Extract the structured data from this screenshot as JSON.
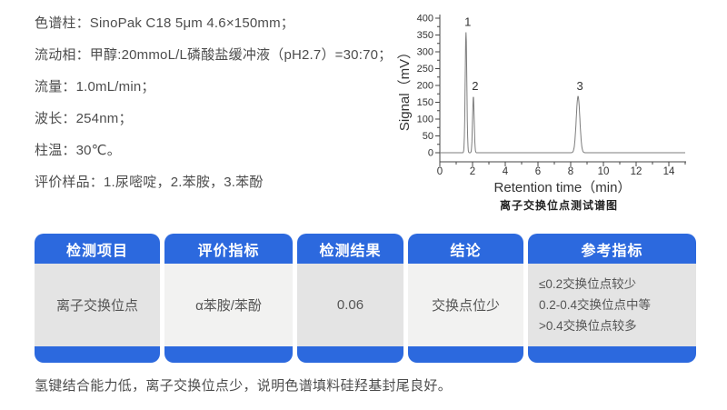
{
  "conditions": {
    "lines": [
      "色谱柱：SinoPak C18 5μm 4.6×150mm；",
      "流动相：甲醇:20mmoL/L磷酸盐缓冲液（pH2.7）=30:70；",
      "流量：1.0mL/min；",
      "波长：254nm；",
      "柱温：30℃。",
      "评价样品：1.尿嘧啶，2.苯胺，3.苯酚"
    ]
  },
  "chart_data": {
    "type": "line",
    "title": "离子交换位点测试谱图",
    "xlabel": "Retention time（min）",
    "ylabel": "Signal（mV）",
    "xlim": [
      0,
      15
    ],
    "ylim": [
      0,
      400
    ],
    "x_major_ticks": [
      0,
      2,
      4,
      6,
      8,
      10,
      12,
      14
    ],
    "x_minor_step": 1,
    "y_major_ticks": [
      0,
      50,
      100,
      150,
      200,
      250,
      300,
      350,
      400
    ],
    "y_minor_step": 25,
    "series_note": "chromatogram baseline at 0 mV with three peaks",
    "peaks": [
      {
        "label": "1",
        "retention_time": 1.6,
        "height_mv": 358,
        "sigma_min": 0.05
      },
      {
        "label": "2",
        "retention_time": 2.05,
        "height_mv": 168,
        "sigma_min": 0.05
      },
      {
        "label": "3",
        "retention_time": 8.45,
        "height_mv": 168,
        "sigma_min": 0.11
      }
    ]
  },
  "table": {
    "columns": [
      {
        "header": "检测项目",
        "value": "离子交换位点"
      },
      {
        "header": "评价指标",
        "value": "α苯胺/苯酚"
      },
      {
        "header": "检测结果",
        "value": "0.06"
      },
      {
        "header": "结论",
        "value": "交换点位少"
      },
      {
        "header": "参考指标",
        "value_lines": [
          "≤0.2交换位点较少",
          "0.2-0.4交换位点中等",
          ">0.4交换位点较多"
        ]
      }
    ]
  },
  "footnote": "氢键结合能力低，离子交换位点少，说明色谱填料硅羟基封尾良好。",
  "colors": {
    "accent_blue": "#2c69de",
    "body_gray_dark": "#e4e4e4",
    "body_gray_light": "#f2f2f1",
    "text_gray": "#4d4d4d",
    "curve_gray": "#7d7d7d"
  }
}
